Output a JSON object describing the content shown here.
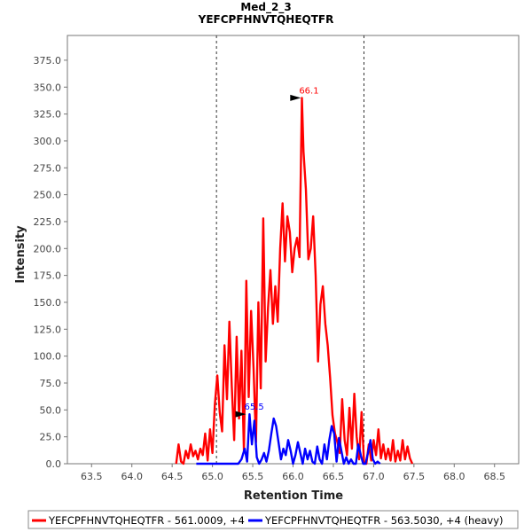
{
  "chart_data": {
    "type": "line",
    "title": "Med_2_3",
    "subtitle": "YEFCPFHNVTQHEQTFR",
    "xlabel": "Retention Time",
    "ylabel": "Intensity",
    "xlim": [
      63.2,
      68.8
    ],
    "ylim": [
      0,
      398
    ],
    "x_ticks": [
      "63.5",
      "64.0",
      "64.5",
      "65.0",
      "65.5",
      "66.0",
      "66.5",
      "67.0",
      "67.5",
      "68.0",
      "68.5"
    ],
    "y_ticks": [
      "0.0",
      "25.0",
      "50.0",
      "75.0",
      "100.0",
      "125.0",
      "150.0",
      "175.0",
      "200.0",
      "225.0",
      "250.0",
      "275.0",
      "300.0",
      "325.0",
      "350.0",
      "375.0"
    ],
    "vlines": [
      65.05,
      66.88
    ],
    "legend_position": "bottom",
    "series": [
      {
        "name": "YEFCPFHNVTQHEQTFR - 561.0009, +4",
        "color": "#ff0000",
        "peak_label": "66.1",
        "peak": [
          66.13,
          340
        ],
        "x": [
          64.55,
          64.58,
          64.61,
          64.64,
          64.67,
          64.7,
          64.73,
          64.76,
          64.79,
          64.82,
          64.85,
          64.88,
          64.91,
          64.94,
          64.97,
          65.0,
          65.03,
          65.06,
          65.09,
          65.12,
          65.15,
          65.18,
          65.21,
          65.24,
          65.27,
          65.3,
          65.33,
          65.36,
          65.39,
          65.42,
          65.45,
          65.48,
          65.51,
          65.54,
          65.57,
          65.6,
          65.63,
          65.66,
          65.69,
          65.72,
          65.75,
          65.78,
          65.81,
          65.84,
          65.87,
          65.9,
          65.93,
          65.96,
          65.99,
          66.02,
          66.05,
          66.08,
          66.11,
          66.13,
          66.16,
          66.19,
          66.22,
          66.25,
          66.28,
          66.31,
          66.34,
          66.37,
          66.4,
          66.43,
          66.46,
          66.49,
          66.52,
          66.55,
          66.58,
          66.61,
          66.64,
          66.67,
          66.7,
          66.73,
          66.76,
          66.79,
          66.82,
          66.85,
          66.88,
          66.91,
          66.94,
          66.97,
          67.0,
          67.03,
          67.06,
          67.09,
          67.12,
          67.15,
          67.18,
          67.21,
          67.24,
          67.27,
          67.3,
          67.33,
          67.36,
          67.39,
          67.42,
          67.45,
          67.48
        ],
        "y": [
          0,
          18,
          2,
          0,
          12,
          5,
          18,
          7,
          12,
          4,
          14,
          8,
          28,
          3,
          32,
          10,
          55,
          82,
          48,
          30,
          110,
          60,
          132,
          72,
          22,
          118,
          42,
          105,
          12,
          170,
          62,
          142,
          88,
          20,
          150,
          70,
          228,
          95,
          145,
          180,
          130,
          165,
          132,
          200,
          242,
          188,
          230,
          215,
          178,
          200,
          210,
          192,
          340,
          290,
          255,
          190,
          200,
          230,
          175,
          95,
          148,
          165,
          130,
          110,
          80,
          45,
          28,
          20,
          10,
          60,
          22,
          8,
          52,
          14,
          65,
          25,
          4,
          48,
          2,
          0,
          18,
          3,
          22,
          8,
          32,
          5,
          18,
          4,
          14,
          3,
          22,
          2,
          12,
          3,
          22,
          4,
          16,
          5,
          0
        ],
        "x_end": 67.48
      },
      {
        "name": "YEFCPFHNVTQHEQTFR - 563.5030, +4 (heavy)",
        "color": "#0000ff",
        "peak_label": "65.5",
        "peak": [
          65.45,
          46
        ],
        "x": [
          64.8,
          65.0,
          65.2,
          65.32,
          65.36,
          65.4,
          65.43,
          65.46,
          65.49,
          65.52,
          65.55,
          65.58,
          65.61,
          65.64,
          65.67,
          65.7,
          65.73,
          65.76,
          65.79,
          65.82,
          65.85,
          65.88,
          65.91,
          65.94,
          65.97,
          66.0,
          66.03,
          66.06,
          66.09,
          66.12,
          66.15,
          66.18,
          66.21,
          66.24,
          66.27,
          66.3,
          66.33,
          66.36,
          66.39,
          66.42,
          66.45,
          66.48,
          66.51,
          66.54,
          66.57,
          66.6,
          66.63,
          66.66,
          66.69,
          66.72,
          66.75,
          66.78,
          66.81,
          66.84,
          66.87,
          66.9,
          66.93,
          66.96,
          66.99,
          67.02,
          67.05,
          67.08
        ],
        "y": [
          0,
          0,
          0,
          0,
          4,
          14,
          2,
          46,
          18,
          40,
          6,
          0,
          4,
          10,
          2,
          12,
          28,
          42,
          35,
          20,
          4,
          14,
          8,
          22,
          12,
          0,
          8,
          20,
          10,
          0,
          14,
          4,
          12,
          2,
          0,
          16,
          4,
          0,
          18,
          4,
          22,
          35,
          28,
          2,
          24,
          12,
          0,
          6,
          0,
          4,
          0,
          0,
          18,
          8,
          0,
          0,
          10,
          22,
          4,
          0,
          2,
          0
        ]
      }
    ]
  }
}
